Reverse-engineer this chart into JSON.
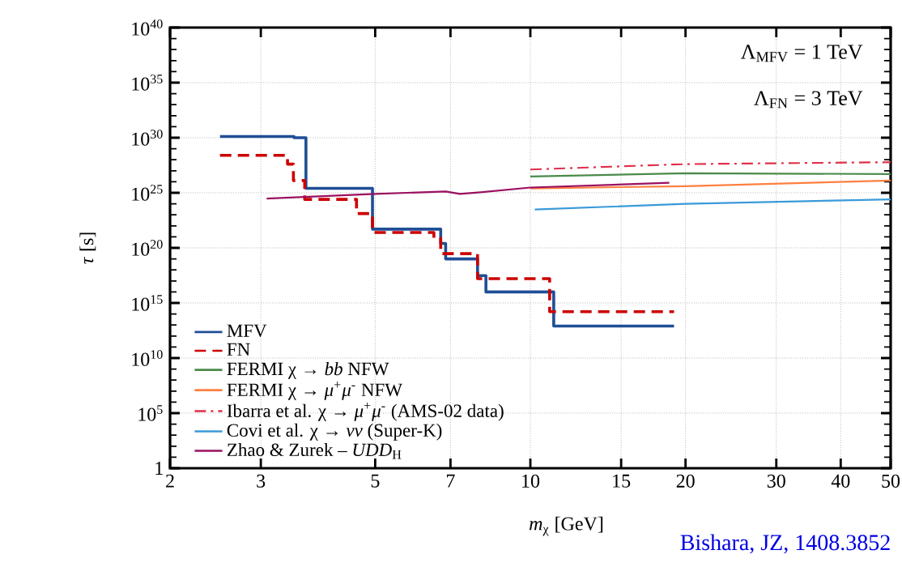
{
  "chart_data": {
    "type": "line",
    "xlabel": "*m*$_{χ}$ [GeV]",
    "ylabel": "*τ* [s]",
    "log": "xy",
    "grid": true,
    "legend": "bottom left",
    "xlim": [
      2,
      50
    ],
    "ylim": [
      1,
      1e+40
    ],
    "xticks": [
      2,
      3,
      5,
      7,
      10,
      15,
      20,
      30,
      40,
      50
    ],
    "yticks": [
      1,
      {
        "value": 100000.0,
        "label": "10$^{5}$"
      },
      {
        "value": 10000000000.0,
        "label": "10$^{10}$"
      },
      {
        "value": 1000000000000000.0,
        "label": "10$^{15}$"
      },
      {
        "value": 1e+20,
        "label": "10$^{20}$"
      },
      {
        "value": 1e+25,
        "label": "10$^{25}$"
      },
      {
        "value": 1e+30,
        "label": "10$^{30}$"
      },
      {
        "value": 1e+35,
        "label": "10$^{35}$"
      },
      {
        "value": 1e+40,
        "label": "10$^{40}$"
      }
    ],
    "annotations": [
      "Λ$_{MFV}$ = 1 TeV",
      "Λ$_{FN}$ = 3 TeV",
      "Bishara, JZ, 1408.3852"
    ],
    "series": [
      {
        "name": "MFV",
        "type": "step",
        "color": "#1f4e96",
        "line_style": "solid",
        "x": [
          2.5,
          3.48,
          3.67,
          4.94,
          6.7,
          6.85,
          7.9,
          8.2,
          11.1,
          19
        ],
        "values": [
          1.3e+30,
          1e+30,
          2.5e+25,
          5e+21,
          2.5e+20,
          1e+19,
          3e+17,
          1e+16,
          8000000000000.0,
          8000000000000.0
        ]
      },
      {
        "name": "FN",
        "type": "step",
        "color": "#cc0000",
        "line_style": "dashed",
        "x": [
          2.5,
          3.38,
          3.47,
          3.65,
          4.6,
          4.94,
          6.5,
          6.7,
          7.9,
          10.9,
          19
        ],
        "values": [
          2.5e+28,
          4e+27,
          1.3e+26,
          2.5e+24,
          1.3e+23,
          2.5e+21,
          8e+20,
          3e+19,
          1.6e+17,
          160000000000000.0,
          160000000000000.0
        ]
      },
      {
        "name": "FERMI χ → *bb* NFW",
        "type": "line",
        "color": "#4a8a4a",
        "line_style": "solid",
        "x": [
          10,
          20,
          50
        ],
        "values": [
          3e+26,
          6e+26,
          5e+26
        ]
      },
      {
        "name": "FERMI χ → *μ*$^{+}$*μ*$^{-}$ NFW",
        "type": "line",
        "color": "#ff7f3f",
        "line_style": "solid",
        "x": [
          10,
          20,
          50
        ],
        "values": [
          2.5e+25,
          4e+25,
          1.3e+26
        ]
      },
      {
        "name": "Ibarra et al. χ → *μ*$^{+}$*μ*$^{-}$ (AMS-02 data)",
        "type": "line",
        "color": "#e0304a",
        "line_style": "dashdot",
        "x": [
          10,
          20,
          50
        ],
        "values": [
          1.3e+27,
          4e+27,
          6e+27
        ]
      },
      {
        "name": "Covi et al. χ → *νν* (Super-K)",
        "type": "line",
        "color": "#3a9ad9",
        "line_style": "solid",
        "x": [
          10.2,
          20,
          50
        ],
        "values": [
          3e+23,
          1e+24,
          2.5e+24
        ]
      },
      {
        "name": "Zhao & Zurek – *UDD*$_{H}$",
        "type": "line",
        "color": "#9a1060",
        "line_style": "solid",
        "x": [
          3.08,
          5,
          6.85,
          7.3,
          8,
          10,
          18.6
        ],
        "values": [
          3e+24,
          8e+24,
          1.3e+25,
          8e+24,
          1.1e+25,
          3e+25,
          8e+25
        ]
      }
    ]
  }
}
